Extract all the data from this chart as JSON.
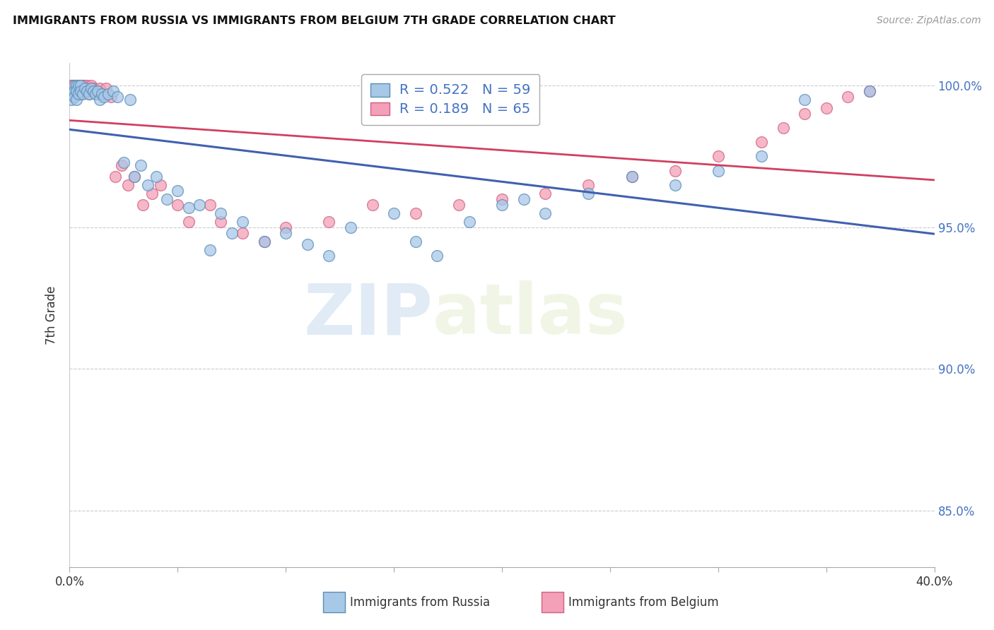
{
  "title": "IMMIGRANTS FROM RUSSIA VS IMMIGRANTS FROM BELGIUM 7TH GRADE CORRELATION CHART",
  "source": "Source: ZipAtlas.com",
  "ylabel_label": "7th Grade",
  "x_min": 0.0,
  "x_max": 0.4,
  "y_min": 0.83,
  "y_max": 1.008,
  "x_ticks": [
    0.0,
    0.05,
    0.1,
    0.15,
    0.2,
    0.25,
    0.3,
    0.35,
    0.4
  ],
  "y_ticks": [
    0.85,
    0.9,
    0.95,
    1.0
  ],
  "y_tick_labels": [
    "85.0%",
    "90.0%",
    "95.0%",
    "100.0%"
  ],
  "russia_color": "#A8C8E8",
  "belgium_color": "#F4A0B8",
  "russia_edge_color": "#5B8DB8",
  "belgium_edge_color": "#D06080",
  "legend_R_russia": "R = 0.522",
  "legend_N_russia": "N = 59",
  "legend_R_belgium": "R = 0.189",
  "legend_N_belgium": "N = 65",
  "trendline_russia_color": "#4060B0",
  "trendline_belgium_color": "#D04060",
  "watermark_zip": "ZIP",
  "watermark_atlas": "atlas",
  "russia_x": [
    0.001,
    0.001,
    0.002,
    0.002,
    0.002,
    0.003,
    0.003,
    0.003,
    0.004,
    0.004,
    0.005,
    0.005,
    0.006,
    0.007,
    0.008,
    0.009,
    0.01,
    0.011,
    0.012,
    0.013,
    0.014,
    0.015,
    0.016,
    0.018,
    0.02,
    0.022,
    0.025,
    0.028,
    0.03,
    0.033,
    0.036,
    0.04,
    0.045,
    0.05,
    0.055,
    0.06,
    0.065,
    0.07,
    0.075,
    0.08,
    0.09,
    0.1,
    0.11,
    0.12,
    0.13,
    0.15,
    0.16,
    0.17,
    0.185,
    0.2,
    0.21,
    0.22,
    0.24,
    0.26,
    0.28,
    0.3,
    0.32,
    0.34,
    0.37
  ],
  "russia_y": [
    0.998,
    0.995,
    1.0,
    0.998,
    0.996,
    1.0,
    0.998,
    0.995,
    1.0,
    0.997,
    1.0,
    0.998,
    0.997,
    0.999,
    0.998,
    0.997,
    0.999,
    0.998,
    0.997,
    0.998,
    0.995,
    0.997,
    0.996,
    0.997,
    0.998,
    0.996,
    0.973,
    0.995,
    0.968,
    0.972,
    0.965,
    0.968,
    0.96,
    0.963,
    0.957,
    0.958,
    0.942,
    0.955,
    0.948,
    0.952,
    0.945,
    0.948,
    0.944,
    0.94,
    0.95,
    0.955,
    0.945,
    0.94,
    0.952,
    0.958,
    0.96,
    0.955,
    0.962,
    0.968,
    0.965,
    0.97,
    0.975,
    0.995,
    0.998
  ],
  "belgium_x": [
    0.001,
    0.001,
    0.001,
    0.001,
    0.002,
    0.002,
    0.002,
    0.002,
    0.003,
    0.003,
    0.003,
    0.003,
    0.004,
    0.004,
    0.004,
    0.005,
    0.005,
    0.005,
    0.006,
    0.006,
    0.006,
    0.007,
    0.007,
    0.008,
    0.008,
    0.009,
    0.009,
    0.01,
    0.011,
    0.012,
    0.013,
    0.014,
    0.015,
    0.017,
    0.019,
    0.021,
    0.024,
    0.027,
    0.03,
    0.034,
    0.038,
    0.042,
    0.05,
    0.055,
    0.065,
    0.07,
    0.08,
    0.09,
    0.1,
    0.12,
    0.14,
    0.16,
    0.18,
    0.2,
    0.22,
    0.24,
    0.26,
    0.28,
    0.3,
    0.32,
    0.33,
    0.34,
    0.35,
    0.36,
    0.37
  ],
  "belgium_y": [
    1.0,
    1.0,
    0.998,
    0.997,
    1.0,
    0.999,
    0.998,
    0.997,
    1.0,
    0.999,
    0.998,
    0.997,
    1.0,
    0.999,
    0.997,
    1.0,
    0.999,
    0.997,
    1.0,
    0.999,
    0.998,
    1.0,
    0.998,
    1.0,
    0.998,
    0.999,
    0.997,
    1.0,
    0.999,
    0.998,
    0.997,
    0.999,
    0.997,
    0.999,
    0.996,
    0.968,
    0.972,
    0.965,
    0.968,
    0.958,
    0.962,
    0.965,
    0.958,
    0.952,
    0.958,
    0.952,
    0.948,
    0.945,
    0.95,
    0.952,
    0.958,
    0.955,
    0.958,
    0.96,
    0.962,
    0.965,
    0.968,
    0.97,
    0.975,
    0.98,
    0.985,
    0.99,
    0.992,
    0.996,
    0.998
  ]
}
